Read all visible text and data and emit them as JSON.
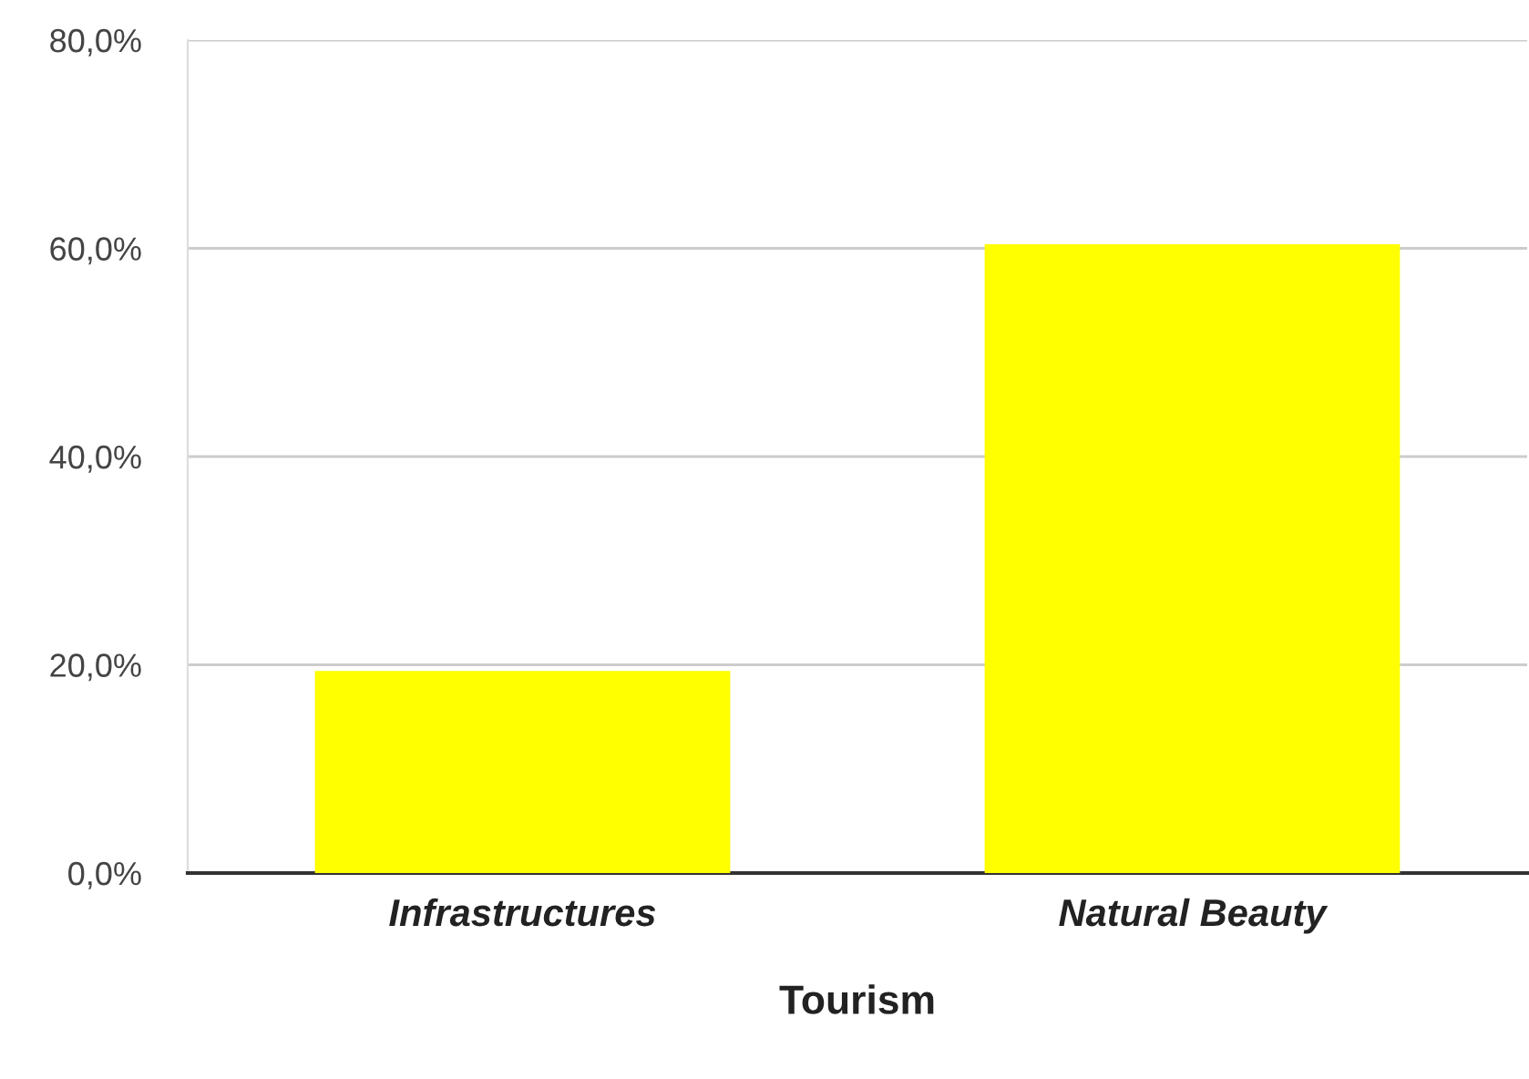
{
  "chart_data": {
    "type": "bar",
    "xlabel": "Tourism",
    "categories": [
      "Infrastructures",
      "Natural Beauty"
    ],
    "values": [
      19.4,
      60.4
    ],
    "color": "#ffff00",
    "ylim": [
      0,
      80
    ],
    "yticks": [
      {
        "value": 0,
        "label": "0,0%"
      },
      {
        "value": 20,
        "label": "20,0%"
      },
      {
        "value": 40,
        "label": "40,0%"
      },
      {
        "value": 60,
        "label": "60,0%"
      },
      {
        "value": 80,
        "label": "80,0%"
      }
    ],
    "grid": "y",
    "legend": false
  }
}
